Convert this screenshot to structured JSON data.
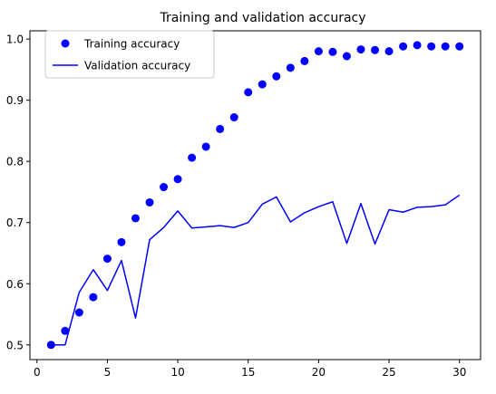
{
  "chart_data": {
    "type": "line",
    "title": "Training and validation accuracy",
    "xlabel": "",
    "ylabel": "",
    "xlim": [
      -0.5,
      31.5
    ],
    "ylim": [
      0.476,
      1.0135
    ],
    "x_ticks": [
      0,
      5,
      10,
      15,
      20,
      25,
      30
    ],
    "y_ticks": [
      0.5,
      0.6,
      0.7,
      0.8,
      0.9,
      1.0
    ],
    "y_tick_labels": [
      "0.5",
      "0.6",
      "0.7",
      "0.8",
      "0.9",
      "1.0"
    ],
    "grid": false,
    "legend_position": "top-left",
    "series": [
      {
        "name": "Training accuracy",
        "style": "markers",
        "color": "#0000ff",
        "x": [
          1,
          2,
          3,
          4,
          5,
          6,
          7,
          8,
          9,
          10,
          11,
          12,
          13,
          14,
          15,
          16,
          17,
          18,
          19,
          20,
          21,
          22,
          23,
          24,
          25,
          26,
          27,
          28,
          29,
          30
        ],
        "values": [
          0.5,
          0.523,
          0.553,
          0.578,
          0.641,
          0.668,
          0.707,
          0.733,
          0.758,
          0.771,
          0.806,
          0.824,
          0.853,
          0.872,
          0.913,
          0.926,
          0.939,
          0.953,
          0.964,
          0.98,
          0.979,
          0.972,
          0.983,
          0.982,
          0.98,
          0.988,
          0.99,
          0.988,
          0.988,
          0.988
        ]
      },
      {
        "name": "Validation accuracy",
        "style": "line",
        "color": "#0000ff",
        "x": [
          1,
          2,
          3,
          4,
          5,
          6,
          7,
          8,
          9,
          10,
          11,
          12,
          13,
          14,
          15,
          16,
          17,
          18,
          19,
          20,
          21,
          22,
          23,
          24,
          25,
          26,
          27,
          28,
          29,
          30
        ],
        "values": [
          0.5,
          0.5,
          0.586,
          0.623,
          0.589,
          0.638,
          0.544,
          0.672,
          0.692,
          0.719,
          0.691,
          0.693,
          0.695,
          0.692,
          0.7,
          0.73,
          0.742,
          0.701,
          0.716,
          0.726,
          0.734,
          0.666,
          0.731,
          0.665,
          0.721,
          0.717,
          0.725,
          0.726,
          0.729,
          0.745
        ]
      }
    ]
  }
}
